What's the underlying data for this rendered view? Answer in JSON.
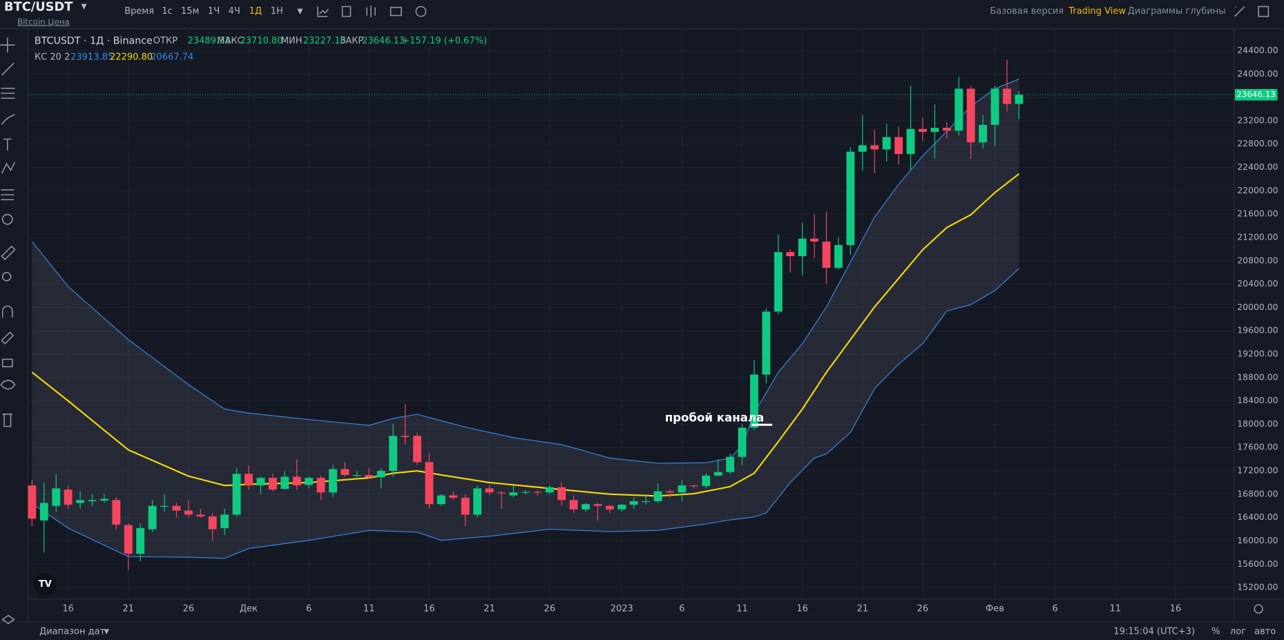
{
  "toolbar": {
    "symbol": "BTC/USDT",
    "subtitle": "Bitcoin Цена",
    "intervals": [
      "Время",
      "1с",
      "15м",
      "1Ч",
      "4Ч",
      "1Д",
      "1Н"
    ],
    "views": [
      "Базовая версия",
      "Trading View",
      "Диаграммы глубины"
    ]
  },
  "legend": {
    "instrument": "BTCUSDT · 1Д · Binance",
    "open_label": "ОТКР",
    "open": "23489.33",
    "high_label": "МАКС",
    "high": "23710.80",
    "low_label": "МИН",
    "low": "23227.16",
    "close_label": "ЗАКР",
    "close": "23646.13",
    "change": "+157.19 (+0.67%)",
    "indicator": "КС 20 2",
    "upper": "23913.85",
    "middle": "22290.80",
    "lower": "20667.74"
  },
  "bottom": {
    "date_range": "Диапазон дат",
    "time": "19:15:04 (UTC+3)",
    "scale_options": [
      "%",
      "лог",
      "авто"
    ]
  },
  "chart_data": {
    "type": "candlestick",
    "up_color": "#0ecb81",
    "down_color": "#f6465d",
    "annotation": "пробой канала",
    "grid": true,
    "price_line": {
      "value": 23646.13,
      "label": "23646.13"
    },
    "xlim": [
      -0.34,
      99.86
    ],
    "xticks": [
      {
        "value": 3,
        "label": "16"
      },
      {
        "value": 8,
        "label": "21"
      },
      {
        "value": 13,
        "label": "26"
      },
      {
        "value": 18,
        "label": "Дек"
      },
      {
        "value": 23,
        "label": "6"
      },
      {
        "value": 28,
        "label": "11"
      },
      {
        "value": 33,
        "label": "16"
      },
      {
        "value": 38,
        "label": "21"
      },
      {
        "value": 43,
        "label": "26"
      },
      {
        "value": 49,
        "label": "2023"
      },
      {
        "value": 54,
        "label": "6"
      },
      {
        "value": 59,
        "label": "11"
      },
      {
        "value": 64,
        "label": "16"
      },
      {
        "value": 69,
        "label": "21"
      },
      {
        "value": 74,
        "label": "26"
      },
      {
        "value": 80,
        "label": "Фев"
      },
      {
        "value": 85,
        "label": "6"
      },
      {
        "value": 90,
        "label": "11"
      },
      {
        "value": 95,
        "label": "16"
      }
    ],
    "ylim": [
      15003,
      24779
    ],
    "yticks": [
      {
        "value": 15200,
        "label": "15200.00"
      },
      {
        "value": 15600,
        "label": "15600.00"
      },
      {
        "value": 16000,
        "label": "16000.00"
      },
      {
        "value": 16400,
        "label": "16400.00"
      },
      {
        "value": 16800,
        "label": "16800.00"
      },
      {
        "value": 17200,
        "label": "17200.00"
      },
      {
        "value": 17600,
        "label": "17600.00"
      },
      {
        "value": 18000,
        "label": "18000.00"
      },
      {
        "value": 18400,
        "label": "18400.00"
      },
      {
        "value": 18800,
        "label": "18800.00"
      },
      {
        "value": 19200,
        "label": "19200.00"
      },
      {
        "value": 19600,
        "label": "19600.00"
      },
      {
        "value": 20000,
        "label": "20000.00"
      },
      {
        "value": 20400,
        "label": "20400.00"
      },
      {
        "value": 20800,
        "label": "20800.00"
      },
      {
        "value": 21200,
        "label": "21200.00"
      },
      {
        "value": 21600,
        "label": "21600.00"
      },
      {
        "value": 22000,
        "label": "22000.00"
      },
      {
        "value": 22400,
        "label": "22400.00"
      },
      {
        "value": 22800,
        "label": "22800.00"
      },
      {
        "value": 23200,
        "label": "23200.00"
      },
      {
        "value": 23600,
        "label": "23600.00"
      },
      {
        "value": 24000,
        "label": "24000.00"
      },
      {
        "value": 24400,
        "label": "24400.00"
      }
    ],
    "candles": {
      "x": [
        0,
        1,
        2,
        3,
        4,
        5,
        6,
        7,
        8,
        9,
        10,
        11,
        12,
        13,
        14,
        15,
        16,
        17,
        18,
        19,
        20,
        21,
        22,
        23,
        24,
        25,
        26,
        27,
        28,
        29,
        30,
        31,
        32,
        33,
        34,
        35,
        36,
        37,
        38,
        39,
        40,
        41,
        42,
        43,
        44,
        45,
        46,
        47,
        48,
        49,
        50,
        51,
        52,
        53,
        54,
        55,
        56,
        57,
        58,
        59,
        60,
        61,
        62,
        63,
        64,
        65,
        66,
        67,
        68,
        69,
        70,
        71,
        72,
        73,
        74,
        75,
        76,
        77,
        78,
        79,
        80,
        81,
        82
      ],
      "open": [
        16950,
        16350,
        16600,
        16880,
        16650,
        16680,
        16690,
        16700,
        16270,
        15780,
        16200,
        16600,
        16600,
        16520,
        16450,
        16420,
        16220,
        16450,
        17150,
        16950,
        17080,
        16890,
        17100,
        16960,
        17080,
        16830,
        17230,
        17130,
        17130,
        17090,
        17200,
        17800,
        17800,
        17350,
        16630,
        16780,
        16740,
        16450,
        16900,
        16830,
        16780,
        16830,
        16840,
        16830,
        16920,
        16700,
        16540,
        16630,
        16600,
        16540,
        16620,
        16680,
        16680,
        16850,
        16830,
        16950,
        16940,
        17120,
        17180,
        17440,
        17940,
        18850,
        19930,
        20950,
        20880,
        21180,
        21130,
        20680,
        21070,
        22670,
        22780,
        22710,
        22920,
        22630,
        23060,
        23010,
        23080,
        23030,
        23750,
        22830,
        23130,
        23750,
        23489.33
      ],
      "high": [
        17050,
        17000,
        17150,
        16950,
        16850,
        16800,
        16800,
        16750,
        16300,
        16300,
        16700,
        16800,
        16650,
        16700,
        16550,
        16480,
        16550,
        17250,
        17300,
        17100,
        17150,
        17200,
        17400,
        17100,
        17120,
        17300,
        17350,
        17200,
        17250,
        17250,
        18000,
        18350,
        17850,
        17500,
        16800,
        16850,
        16800,
        16950,
        16950,
        16860,
        16950,
        16870,
        16870,
        16950,
        17000,
        16780,
        16650,
        16650,
        16620,
        16630,
        16750,
        16780,
        16990,
        16880,
        17040,
        16960,
        17160,
        17400,
        17500,
        18000,
        19100,
        19980,
        21250,
        21000,
        21450,
        21600,
        21650,
        21200,
        22750,
        23300,
        23050,
        23150,
        23100,
        23800,
        23250,
        23480,
        23180,
        23950,
        23800,
        23300,
        23800,
        24250,
        23710.8
      ],
      "low": [
        16250,
        15800,
        16500,
        16550,
        16550,
        16600,
        16650,
        16200,
        15500,
        15650,
        16150,
        16500,
        16400,
        16400,
        16400,
        16000,
        16100,
        16420,
        16880,
        16800,
        16850,
        16880,
        16880,
        16900,
        16700,
        16750,
        17100,
        17090,
        17070,
        16900,
        17100,
        17650,
        17300,
        16550,
        16600,
        16700,
        16250,
        16400,
        16780,
        16550,
        16750,
        16800,
        16780,
        16800,
        16600,
        16480,
        16500,
        16350,
        16480,
        16500,
        16550,
        16620,
        16650,
        16750,
        16680,
        16900,
        16900,
        17100,
        17150,
        17300,
        17900,
        18700,
        19880,
        20600,
        20550,
        20850,
        20400,
        20650,
        20900,
        22350,
        22300,
        22500,
        22450,
        22350,
        22850,
        22550,
        22900,
        22950,
        22550,
        22720,
        22770,
        23360,
        23227.16
      ],
      "close": [
        16380,
        16650,
        16900,
        16620,
        16700,
        16700,
        16720,
        16280,
        15780,
        16220,
        16600,
        16600,
        16520,
        16450,
        16420,
        16200,
        16450,
        17150,
        16950,
        17080,
        16880,
        17100,
        16950,
        17080,
        16830,
        17230,
        17130,
        17130,
        17090,
        17200,
        17800,
        17780,
        17350,
        16630,
        16780,
        16740,
        16450,
        16900,
        16830,
        16820,
        16830,
        16840,
        16830,
        16920,
        16700,
        16540,
        16630,
        16600,
        16540,
        16620,
        16680,
        16680,
        16850,
        16830,
        16950,
        16940,
        17120,
        17180,
        17440,
        17940,
        18850,
        19930,
        20950,
        20880,
        21180,
        21130,
        20680,
        21070,
        22670,
        22780,
        22710,
        22920,
        22630,
        23060,
        23010,
        23080,
        23030,
        23750,
        22830,
        23130,
        23750,
        23489.33,
        23646.13
      ]
    },
    "band_fill": "rgba(130,135,155,0.16)",
    "series": [
      {
        "name": "upper",
        "color": "#3a86e0",
        "x": [
          0,
          3,
          8,
          13,
          16,
          18,
          23,
          28,
          30,
          32,
          36,
          40,
          44,
          48,
          52,
          56,
          58,
          59,
          60,
          62,
          64,
          66,
          68,
          70,
          72,
          74,
          76,
          78,
          80,
          82
        ],
        "values": [
          21130,
          20360,
          19450,
          18680,
          18260,
          18190,
          18080,
          17980,
          18100,
          18170,
          17950,
          17770,
          17650,
          17420,
          17330,
          17340,
          17420,
          17630,
          18190,
          18890,
          19380,
          20010,
          20780,
          21550,
          22110,
          22600,
          23020,
          23450,
          23750,
          23913.85
        ]
      },
      {
        "name": "middle",
        "color": "#f5d90a",
        "x": [
          0,
          3,
          8,
          13,
          16,
          18,
          23,
          28,
          30,
          32,
          34,
          38,
          43,
          48,
          52,
          55,
          58,
          60,
          62,
          64,
          66,
          68,
          70,
          72,
          74,
          76,
          78,
          80,
          82
        ],
        "values": [
          18890,
          18400,
          17560,
          17110,
          16950,
          16970,
          17000,
          17080,
          17160,
          17200,
          17130,
          17000,
          16900,
          16800,
          16770,
          16810,
          16930,
          17160,
          17700,
          18260,
          18890,
          19450,
          20010,
          20500,
          20990,
          21370,
          21590,
          21970,
          22290.8
        ]
      },
      {
        "name": "lower",
        "color": "#3a86e0",
        "x": [
          0,
          3,
          8,
          13,
          16,
          18,
          23,
          28,
          32,
          34,
          38,
          43,
          48,
          52,
          56,
          58,
          60,
          61,
          63,
          65,
          66,
          68,
          70,
          72,
          74,
          76,
          78,
          80,
          82
        ],
        "values": [
          16640,
          16220,
          15730,
          15720,
          15700,
          15870,
          16010,
          16180,
          16150,
          16010,
          16080,
          16200,
          16160,
          16180,
          16290,
          16360,
          16410,
          16480,
          17000,
          17420,
          17490,
          17860,
          18610,
          19030,
          19380,
          19940,
          20050,
          20290,
          20667.74
        ]
      }
    ]
  }
}
